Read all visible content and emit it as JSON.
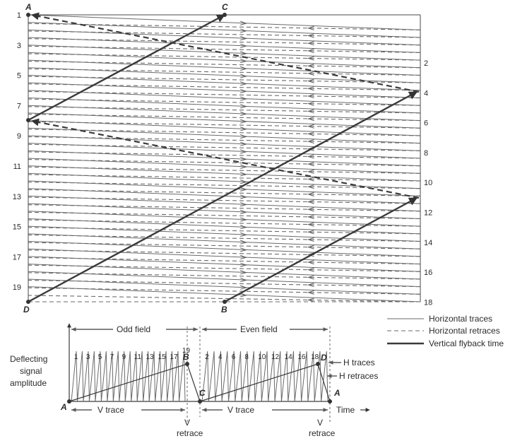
{
  "raster": {
    "corner_labels": {
      "A": "A",
      "B": "B",
      "C": "C",
      "D": "D"
    },
    "odd_line_numbers": [
      "1",
      "3",
      "5",
      "7",
      "9",
      "11",
      "13",
      "15",
      "17",
      "19"
    ],
    "even_line_numbers": [
      "2",
      "4",
      "6",
      "8",
      "10",
      "12",
      "14",
      "16",
      "18"
    ]
  },
  "legend": {
    "horizontal_traces": "Horizontal traces",
    "horizontal_retraces": "Horizontal retraces",
    "vertical_flyback": "Vertical flyback time"
  },
  "waveform": {
    "odd_field": "Odd field",
    "even_field": "Even field",
    "y_axis_label": [
      "Deflecting",
      "signal",
      "amplitude"
    ],
    "odd_pulse_numbers": [
      "1",
      "3",
      "5",
      "7",
      "9",
      "11",
      "13",
      "15",
      "17"
    ],
    "even_pulse_numbers": [
      "2",
      "4",
      "6",
      "8",
      "10",
      "12",
      "14",
      "16",
      "18"
    ],
    "pulse_19": "19",
    "points": {
      "A": "A",
      "B": "B",
      "C": "C",
      "D": "D"
    },
    "h_traces": "H traces",
    "h_retraces": "H retraces",
    "v_trace": "V trace",
    "v_retrace_v": "V",
    "v_retrace_word": "retrace",
    "time": "Time"
  }
}
